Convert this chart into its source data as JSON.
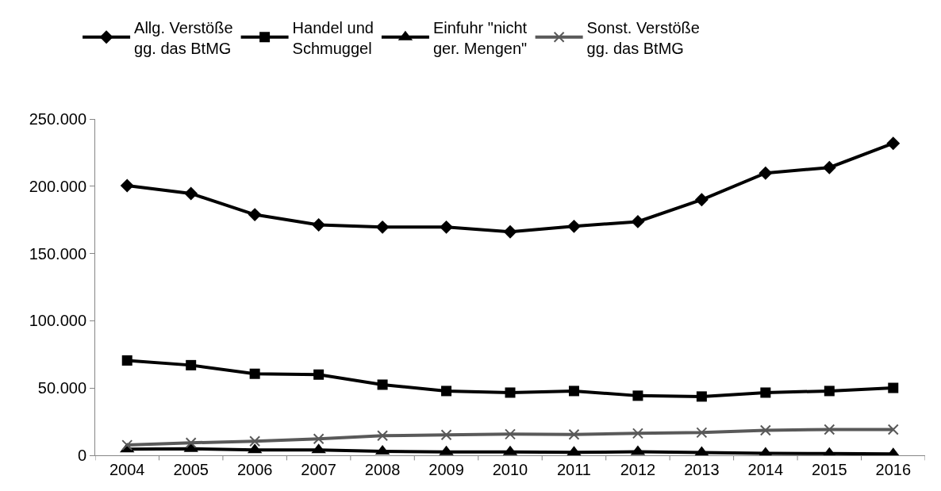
{
  "chart_data": {
    "type": "line",
    "categories": [
      "2004",
      "2005",
      "2006",
      "2007",
      "2008",
      "2009",
      "2010",
      "2011",
      "2012",
      "2013",
      "2014",
      "2015",
      "2016"
    ],
    "series": [
      {
        "name": "Allg. Verstöße\ngg. das BtMG",
        "color": "#000000",
        "marker": "diamond",
        "values": [
          200500,
          194600,
          178900,
          171300,
          169600,
          169600,
          166100,
          170200,
          173700,
          190000,
          209800,
          213900,
          231900
        ]
      },
      {
        "name": "Handel und\nSchmuggel",
        "color": "#000000",
        "marker": "square",
        "values": [
          70500,
          67000,
          60600,
          60000,
          52500,
          47800,
          46600,
          47800,
          44300,
          43700,
          46600,
          47800,
          50100
        ]
      },
      {
        "name": "Einfuhr \"nicht\nger. Mengen\"",
        "color": "#000000",
        "marker": "triangle",
        "values": [
          4500,
          4800,
          4000,
          4000,
          3000,
          2500,
          2500,
          2200,
          2600,
          2000,
          1500,
          1300,
          1000
        ]
      },
      {
        "name": "Sonst. Verstöße\ngg. das BtMG",
        "color": "#595959",
        "marker": "cross",
        "values": [
          7600,
          9300,
          10500,
          12200,
          14600,
          15200,
          15700,
          15500,
          16300,
          16900,
          18600,
          19200,
          19200
        ]
      }
    ],
    "ylim": [
      0,
      250000
    ],
    "yticks": [
      0,
      {
        "value": 50000,
        "label": "50.000"
      },
      {
        "value": 100000,
        "label": "100.000"
      },
      {
        "value": 150000,
        "label": "150.000"
      },
      {
        "value": 200000,
        "label": "200.000"
      },
      {
        "value": 250000,
        "label": "250.000"
      }
    ],
    "legend": "top",
    "line_style": "solid"
  }
}
